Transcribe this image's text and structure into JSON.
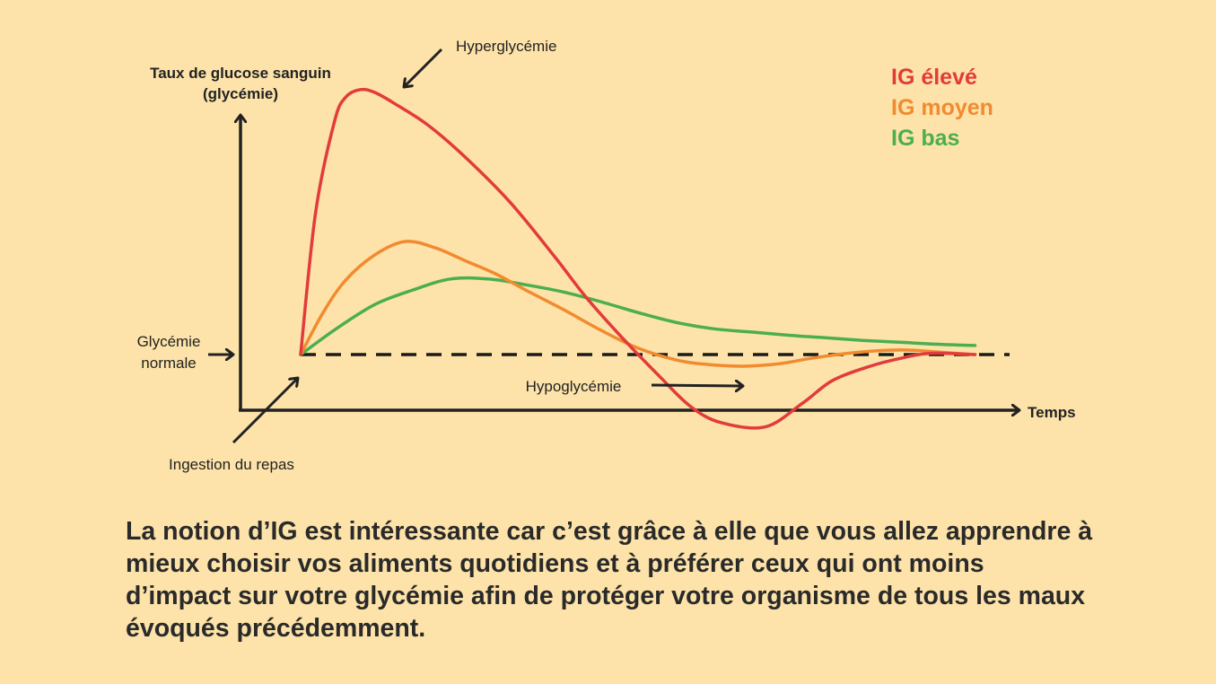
{
  "chart_data": {
    "type": "line",
    "ylabel_line1": "Taux de glucose sanguin",
    "ylabel_line2": "(glycémie)",
    "xlabel": "Temps",
    "baseline_label_line1": "Glycémie",
    "baseline_label_line2": "normale",
    "baseline_value": 0,
    "annotations": {
      "peak": "Hyperglycémie",
      "meal": "Ingestion du repas",
      "low": "Hypoglycémie"
    },
    "xlim": [
      0,
      10
    ],
    "ylim": [
      -1,
      4.5
    ],
    "legend_position": "top-right",
    "series": [
      {
        "name": "IG élevé",
        "color": "#e23b3b",
        "x": [
          0,
          0.2,
          0.45,
          0.6,
          0.8,
          1.0,
          1.3,
          1.7,
          2.2,
          2.8,
          3.4,
          3.8,
          4.3,
          4.8,
          5.2,
          5.6,
          6.2,
          6.7,
          7.1,
          7.6,
          8.0,
          8.4,
          9.0
        ],
        "y": [
          0,
          2.2,
          3.6,
          3.98,
          4.1,
          4.05,
          3.85,
          3.55,
          3.05,
          2.35,
          1.5,
          0.9,
          0.25,
          -0.35,
          -0.8,
          -1.05,
          -1.12,
          -0.75,
          -0.4,
          -0.18,
          -0.06,
          0.02,
          0
        ]
      },
      {
        "name": "IG moyen",
        "color": "#f28a30",
        "x": [
          0,
          0.3,
          0.6,
          1.0,
          1.4,
          1.8,
          2.2,
          2.6,
          3.0,
          3.5,
          4.0,
          4.5,
          5.0,
          5.4,
          5.9,
          6.4,
          6.8,
          7.3,
          7.7,
          8.1,
          8.5,
          9.0
        ],
        "y": [
          0,
          0.65,
          1.15,
          1.55,
          1.75,
          1.65,
          1.45,
          1.25,
          1.0,
          0.7,
          0.38,
          0.1,
          -0.08,
          -0.15,
          -0.18,
          -0.14,
          -0.06,
          0.02,
          0.06,
          0.07,
          0.04,
          0
        ]
      },
      {
        "name": "IG bas",
        "color": "#4cae4f",
        "x": [
          0,
          0.5,
          1.0,
          1.5,
          2.0,
          2.5,
          3.0,
          3.5,
          4.0,
          4.5,
          5.0,
          5.5,
          6.0,
          6.5,
          7.0,
          7.5,
          8.0,
          8.5,
          9.0
        ],
        "y": [
          0,
          0.42,
          0.78,
          1.0,
          1.17,
          1.17,
          1.08,
          0.97,
          0.82,
          0.65,
          0.5,
          0.4,
          0.35,
          0.3,
          0.26,
          0.22,
          0.19,
          0.16,
          0.14
        ]
      }
    ]
  },
  "caption": "La notion d’IG est intéressante car c’est grâce à elle que vous allez apprendre à mieux choisir vos aliments quotidiens et à préférer ceux qui ont moins d’impact sur votre glycémie afin de protéger votre organisme de tous les maux évoqués précédemment."
}
